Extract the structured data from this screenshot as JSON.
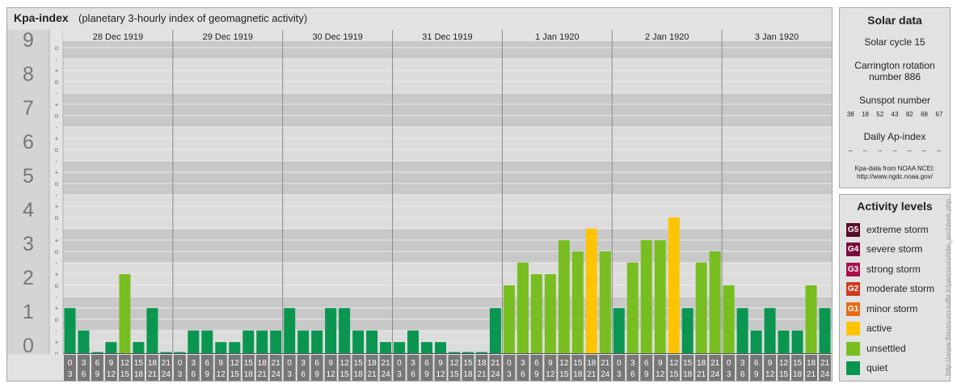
{
  "title": "Kpa-index",
  "subtitle": "(planetary 3-hourly index of geomagnetic activity)",
  "chart_data": {
    "type": "bar",
    "title": "Kpa-index",
    "subtitle": "(planetary 3-hourly index of geomagnetic activity)",
    "ylim": [
      0,
      9.33
    ],
    "y_major_ticks": [
      "0",
      "1",
      "2",
      "3",
      "4",
      "5",
      "6",
      "7",
      "8",
      "9"
    ],
    "y_minor_ticks": [
      "o",
      "+",
      "-",
      "o",
      "+",
      "-",
      "o",
      "+",
      "-",
      "o",
      "+",
      "-",
      "o",
      "+",
      "-",
      "o",
      "+",
      "-",
      "o",
      "+",
      "-",
      "o",
      "+",
      "-",
      "o",
      "+",
      "-",
      "o"
    ],
    "days": [
      "28 Dec 1919",
      "29 Dec 1919",
      "30 Dec 1919",
      "31 Dec 1919",
      "1 Jan 1920",
      "2 Jan 1920",
      "3 Jan 1920"
    ],
    "interval_starts": [
      "0",
      "3",
      "6",
      "9",
      "12",
      "15",
      "18",
      "21"
    ],
    "interval_ends": [
      "3",
      "6",
      "9",
      "12",
      "15",
      "18",
      "21",
      "24"
    ],
    "values": [
      1.33,
      0.67,
      0,
      0.33,
      2.33,
      0.33,
      1.33,
      0,
      0,
      0.67,
      0.67,
      0.33,
      0.33,
      0.67,
      0.67,
      0.67,
      1.33,
      0.67,
      0.67,
      1.33,
      1.33,
      0.67,
      0.67,
      0.33,
      0.33,
      0.67,
      0.33,
      0.33,
      0,
      0,
      0,
      1.33,
      2,
      2.67,
      2.33,
      2.33,
      3.33,
      3,
      3.67,
      3,
      1.33,
      2.67,
      3.33,
      3.33,
      4,
      1.33,
      2.67,
      3,
      2,
      1.33,
      0.67,
      1.33,
      0.67,
      0.67,
      2,
      1.33
    ],
    "thresholds": {
      "quiet_below": 2,
      "unsettled_below": 3.67,
      "active_below": 4.67
    },
    "colors": {
      "quiet": "#0a9650",
      "unsettled": "#78be21",
      "active": "#ffc400",
      "empty": "#0a9650"
    },
    "grid": true,
    "legend_placement": "right"
  },
  "solar": {
    "title": "Solar data",
    "cycle": "Solar cycle 15",
    "carrington_line1": "Carrington rotation",
    "carrington_line2": "number 886",
    "sunspot_title": "Sunspot number",
    "sunspots": [
      "38",
      "18",
      "52",
      "43",
      "82",
      "68",
      "67"
    ],
    "ap_title": "Daily Ap-index",
    "ap_values": [
      "--",
      "--",
      "--",
      "--",
      "--",
      "--",
      "--"
    ],
    "credit_line1": "Kpa-data from NOAA NCEI:",
    "credit_line2": "http://www.ngdc.noaa.gov/"
  },
  "activity": {
    "title": "Activity levels",
    "levels": [
      {
        "code": "G5",
        "label": "extreme storm",
        "color": "#5a0a2a"
      },
      {
        "code": "G4",
        "label": "severe storm",
        "color": "#7a0a3a"
      },
      {
        "code": "G3",
        "label": "strong storm",
        "color": "#a8104e"
      },
      {
        "code": "G2",
        "label": "moderate storm",
        "color": "#d23a1e"
      },
      {
        "code": "G1",
        "label": "minor storm",
        "color": "#e86c14"
      },
      {
        "code": "",
        "label": "active",
        "color": "#ffc400"
      },
      {
        "code": "",
        "label": "unsettled",
        "color": "#78be21"
      },
      {
        "code": "",
        "label": "quiet",
        "color": "#0a9650"
      }
    ]
  },
  "source_url": "http://www.fleuss-en-tuffe.fr/parcours/site_archives.php"
}
